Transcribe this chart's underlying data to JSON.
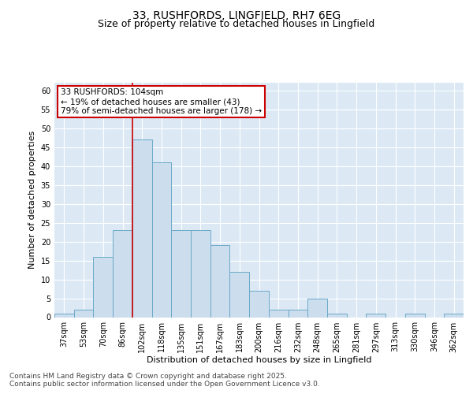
{
  "title1": "33, RUSHFORDS, LINGFIELD, RH7 6EG",
  "title2": "Size of property relative to detached houses in Lingfield",
  "xlabel": "Distribution of detached houses by size in Lingfield",
  "ylabel": "Number of detached properties",
  "categories": [
    "37sqm",
    "53sqm",
    "70sqm",
    "86sqm",
    "102sqm",
    "118sqm",
    "135sqm",
    "151sqm",
    "167sqm",
    "183sqm",
    "200sqm",
    "216sqm",
    "232sqm",
    "248sqm",
    "265sqm",
    "281sqm",
    "297sqm",
    "313sqm",
    "330sqm",
    "346sqm",
    "362sqm"
  ],
  "values": [
    1,
    2,
    16,
    23,
    47,
    41,
    23,
    23,
    19,
    12,
    7,
    2,
    2,
    5,
    1,
    0,
    1,
    0,
    1,
    0,
    1
  ],
  "bar_color": "#ccdded",
  "bar_edge_color": "#6aaac8",
  "highlight_index": 4,
  "highlight_line_color": "#cc0000",
  "annotation_text": "33 RUSHFORDS: 104sqm\n← 19% of detached houses are smaller (43)\n79% of semi-detached houses are larger (178) →",
  "annotation_box_color": "#ffffff",
  "annotation_box_edge_color": "#cc0000",
  "ylim": [
    0,
    62
  ],
  "yticks": [
    0,
    5,
    10,
    15,
    20,
    25,
    30,
    35,
    40,
    45,
    50,
    55,
    60
  ],
  "background_color": "#dce9f5",
  "grid_color": "#ffffff",
  "footer_text": "Contains HM Land Registry data © Crown copyright and database right 2025.\nContains public sector information licensed under the Open Government Licence v3.0.",
  "title_fontsize": 10,
  "subtitle_fontsize": 9,
  "axis_label_fontsize": 8,
  "tick_fontsize": 7,
  "annotation_fontsize": 7.5,
  "footer_fontsize": 6.5
}
